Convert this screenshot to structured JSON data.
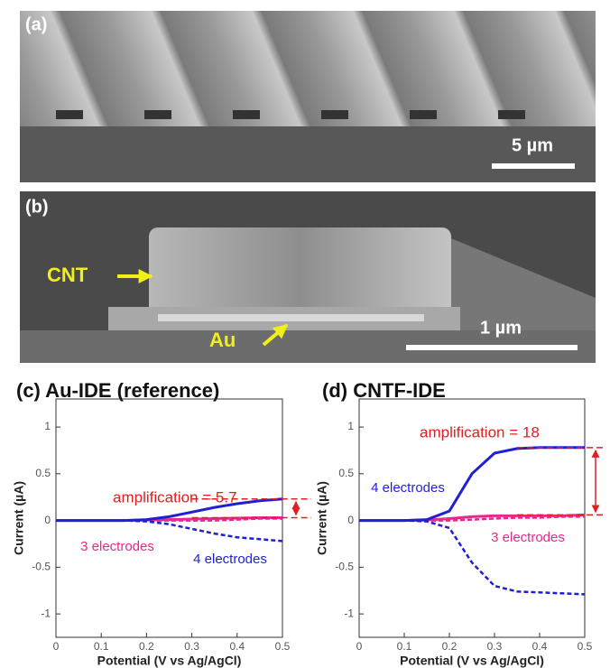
{
  "panels": [
    {
      "label": "(a)",
      "scale_bar": "5 µm"
    },
    {
      "label": "(b)",
      "scale_bar": "1 µm",
      "annotations": [
        "CNT",
        "Au"
      ]
    }
  ],
  "chart_data": [
    {
      "type": "line",
      "title": "(c) Au-IDE (reference)",
      "xlabel": "Potential (V vs Ag/AgCl)",
      "ylabel": "Current (µA)",
      "annotation": "amplification = 5.7",
      "x": [
        0,
        0.05,
        0.1,
        0.15,
        0.2,
        0.25,
        0.3,
        0.35,
        0.4,
        0.45,
        0.5
      ],
      "series": [
        {
          "name": "3 electrodes",
          "color": "#e8288c",
          "values": [
            0,
            0,
            0,
            0,
            0.005,
            0.01,
            0.015,
            0.02,
            0.025,
            0.03,
            0.03
          ],
          "reverse": [
            0,
            0,
            0,
            0,
            0,
            0,
            0,
            0,
            0.01,
            0.02,
            0.02
          ]
        },
        {
          "name": "4 electrodes",
          "color": "#1f1fd6",
          "values": [
            0,
            0,
            0,
            0,
            0.01,
            0.04,
            0.09,
            0.14,
            0.18,
            0.21,
            0.23
          ],
          "reverse": [
            0,
            0,
            0,
            0,
            -0.01,
            -0.04,
            -0.09,
            -0.14,
            -0.18,
            -0.2,
            -0.22
          ]
        }
      ],
      "xlim": [
        0,
        0.5
      ],
      "xticks": [
        0,
        0.1,
        0.2,
        0.3,
        0.4,
        0.5
      ],
      "ylim": [
        -1.25,
        1.3
      ],
      "yticks": [
        -1,
        -0.5,
        0,
        0.5,
        1
      ],
      "grid": false
    },
    {
      "type": "line",
      "title": "(d) CNTF-IDE",
      "xlabel": "Potential (V vs Ag/AgCl)",
      "ylabel": "Current (µA)",
      "annotation": "amplification = 18",
      "x": [
        0,
        0.05,
        0.1,
        0.15,
        0.2,
        0.25,
        0.3,
        0.35,
        0.4,
        0.45,
        0.5
      ],
      "series": [
        {
          "name": "3 electrodes",
          "color": "#e8288c",
          "values": [
            0,
            0,
            0,
            0.005,
            0.02,
            0.04,
            0.05,
            0.05,
            0.05,
            0.05,
            0.06
          ],
          "reverse": [
            0,
            0,
            0,
            0,
            0,
            0.01,
            0.02,
            0.03,
            0.03,
            0.04,
            0.04
          ]
        },
        {
          "name": "4 electrodes",
          "color": "#1f1fd6",
          "values": [
            0,
            0,
            0,
            0.01,
            0.1,
            0.5,
            0.72,
            0.77,
            0.78,
            0.78,
            0.78
          ],
          "reverse": [
            0,
            0,
            0,
            -0.01,
            -0.08,
            -0.45,
            -0.7,
            -0.76,
            -0.77,
            -0.78,
            -0.79
          ]
        }
      ],
      "xlim": [
        0,
        0.5
      ],
      "xticks": [
        0,
        0.1,
        0.2,
        0.3,
        0.4,
        0.5
      ],
      "ylim": [
        -1.25,
        1.3
      ],
      "yticks": [
        -1,
        -0.5,
        0,
        0.5,
        1
      ],
      "grid": false
    }
  ]
}
